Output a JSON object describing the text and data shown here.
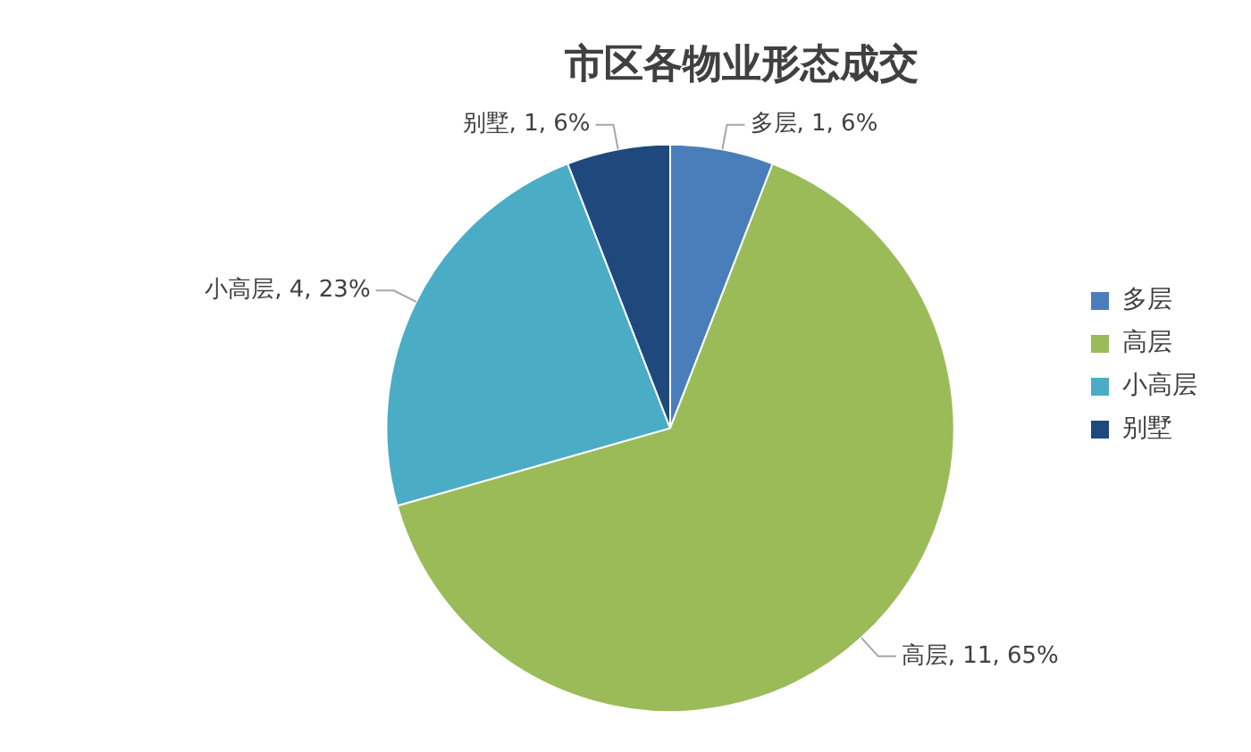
{
  "chart_data": {
    "type": "pie",
    "title": "市区各物业形态成交",
    "categories": [
      "多层",
      "高层",
      "小高层",
      "别墅"
    ],
    "values": [
      1,
      11,
      4,
      1
    ],
    "colors": [
      "#4a7ebb",
      "#9bbb59",
      "#4bacc6",
      "#1f497d"
    ],
    "value_labels": [
      "多层, 1, 6%",
      "高层, 11, 65%",
      "小高层, 4, 23%",
      "别墅, 1, 6%"
    ],
    "legend": "right"
  }
}
